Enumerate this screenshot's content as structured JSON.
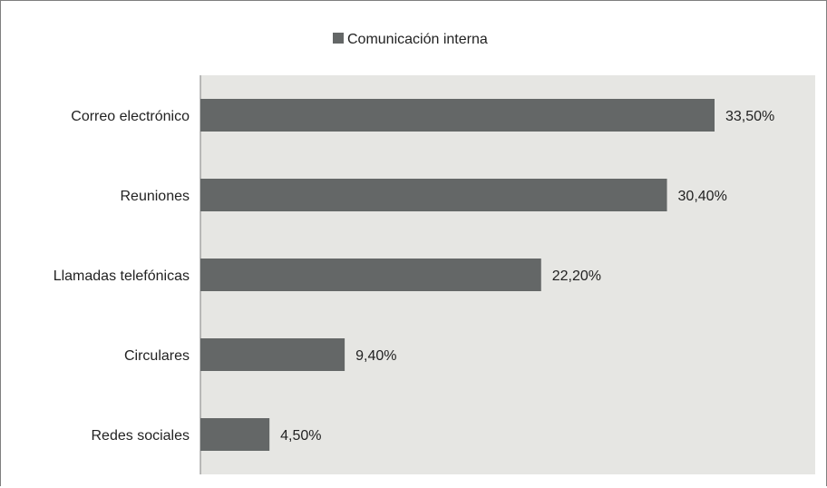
{
  "chart_data": {
    "type": "bar",
    "orientation": "horizontal",
    "categories": [
      "Correo electrónico",
      "Reuniones",
      "Llamadas telefónicas",
      "Circulares",
      "Redes sociales"
    ],
    "series": [
      {
        "name": "Comunicación interna",
        "values": [
          33.5,
          30.4,
          22.2,
          9.4,
          4.5
        ],
        "value_labels": [
          "33,50%",
          "30,40%",
          "22,20%",
          "9,40%",
          "4,50%"
        ]
      }
    ],
    "xlim": [
      0,
      40
    ],
    "legend_position": "top",
    "grid": false,
    "colors": {
      "bar": "#646767",
      "plot_area": "#e6e6e3",
      "axis": "#7f7f7f"
    }
  }
}
